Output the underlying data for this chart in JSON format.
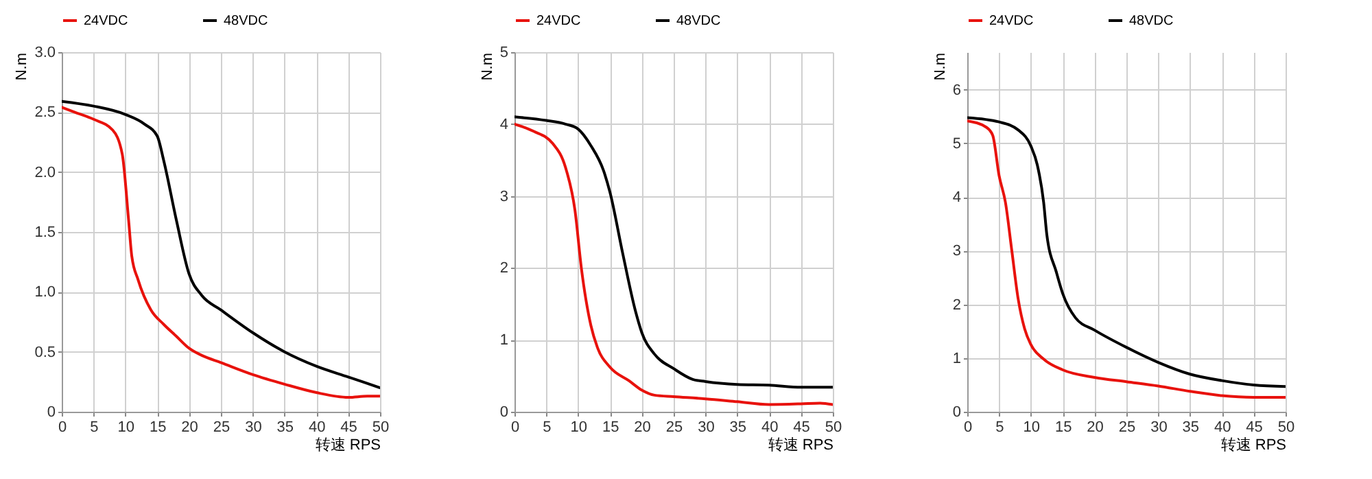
{
  "chart_data": [
    {
      "type": "line",
      "xlabel": "转速 RPS",
      "ylabel": "N.m",
      "xlim": [
        0,
        50
      ],
      "xticks": [
        0,
        5,
        10,
        15,
        20,
        25,
        30,
        35,
        40,
        45,
        50
      ],
      "ylim": [
        0,
        3
      ],
      "yticks": [
        0,
        {
          "value": 0.5,
          "label": "0.5"
        },
        {
          "value": 1,
          "label": "1.0"
        },
        {
          "value": 1.5,
          "label": "1.5"
        },
        {
          "value": 2,
          "label": "2.0"
        },
        {
          "value": 2.5,
          "label": "2.5"
        },
        {
          "value": 3,
          "label": "3.0"
        }
      ],
      "grid": true,
      "legend": "top",
      "line_style": "solid",
      "series": [
        {
          "name": "24VDC",
          "color": "#e8120c",
          "x": [
            0,
            2,
            5,
            8,
            9.5,
            10.5,
            11,
            12,
            14,
            16,
            18,
            20,
            22,
            25,
            30,
            35,
            40,
            45,
            48,
            50
          ],
          "values": [
            2.54,
            2.5,
            2.44,
            2.35,
            2.15,
            1.6,
            1.3,
            1.1,
            0.85,
            0.73,
            0.63,
            0.53,
            0.47,
            0.41,
            0.31,
            0.23,
            0.16,
            0.12,
            0.13,
            0.13
          ]
        },
        {
          "name": "48VDC",
          "color": "#000000",
          "x": [
            0,
            5,
            10,
            13,
            15,
            16,
            18,
            20,
            22,
            25,
            30,
            35,
            40,
            45,
            50
          ],
          "values": [
            2.59,
            2.55,
            2.48,
            2.4,
            2.3,
            2.1,
            1.6,
            1.15,
            0.97,
            0.85,
            0.66,
            0.5,
            0.38,
            0.29,
            0.2
          ]
        }
      ]
    },
    {
      "type": "line",
      "xlabel": "转速 RPS",
      "ylabel": "N.m",
      "xlim": [
        0,
        50
      ],
      "xticks": [
        0,
        5,
        10,
        15,
        20,
        25,
        30,
        35,
        40,
        45,
        50
      ],
      "ylim": [
        0,
        5
      ],
      "yticks": [
        0,
        1,
        2,
        3,
        4,
        5
      ],
      "grid": true,
      "legend": "top",
      "line_style": "solid",
      "series": [
        {
          "name": "24VDC",
          "color": "#e8120c",
          "x": [
            0,
            3,
            6,
            8,
            9.5,
            10.5,
            12,
            13,
            15,
            18,
            20,
            22,
            25,
            30,
            35,
            40,
            45,
            48,
            50
          ],
          "values": [
            4.0,
            3.9,
            3.73,
            3.4,
            2.8,
            2.0,
            1.2,
            0.9,
            0.62,
            0.43,
            0.3,
            0.23,
            0.21,
            0.18,
            0.14,
            0.1,
            0.11,
            0.12,
            0.1
          ]
        },
        {
          "name": "48VDC",
          "color": "#000000",
          "x": [
            0,
            5,
            8,
            10,
            12,
            14,
            15,
            17,
            19,
            20,
            22,
            25,
            28,
            30,
            35,
            40,
            45,
            50
          ],
          "values": [
            4.1,
            4.05,
            4.0,
            3.93,
            3.7,
            3.35,
            3.05,
            2.2,
            1.4,
            1.1,
            0.8,
            0.6,
            0.45,
            0.42,
            0.38,
            0.37,
            0.34,
            0.34
          ]
        }
      ]
    },
    {
      "type": "line",
      "xlabel": "转速 RPS",
      "ylabel": "N.m",
      "xlim": [
        0,
        50
      ],
      "xticks": [
        0,
        5,
        10,
        15,
        20,
        25,
        30,
        35,
        40,
        45,
        50
      ],
      "ylim": [
        0,
        6.7
      ],
      "yticks": [
        0,
        1,
        2,
        3,
        4,
        5,
        6
      ],
      "grid": true,
      "legend": "top",
      "line_style": "solid",
      "series": [
        {
          "name": "24VDC",
          "color": "#e8120c",
          "x": [
            0,
            3,
            4,
            5,
            6,
            7,
            8,
            9,
            10,
            12,
            15,
            20,
            25,
            30,
            35,
            40,
            45,
            50
          ],
          "values": [
            5.42,
            5.3,
            5.15,
            4.4,
            3.9,
            3.0,
            2.1,
            1.55,
            1.25,
            0.98,
            0.78,
            0.64,
            0.56,
            0.48,
            0.38,
            0.3,
            0.27,
            0.27
          ]
        },
        {
          "name": "48VDC",
          "color": "#000000",
          "x": [
            0,
            5,
            8,
            10,
            11,
            12,
            12.5,
            14,
            15,
            17,
            20,
            25,
            30,
            35,
            40,
            45,
            50
          ],
          "values": [
            5.48,
            5.4,
            5.25,
            4.95,
            4.6,
            3.9,
            3.3,
            2.6,
            2.2,
            1.75,
            1.52,
            1.2,
            0.92,
            0.7,
            0.58,
            0.5,
            0.47
          ]
        }
      ]
    }
  ]
}
